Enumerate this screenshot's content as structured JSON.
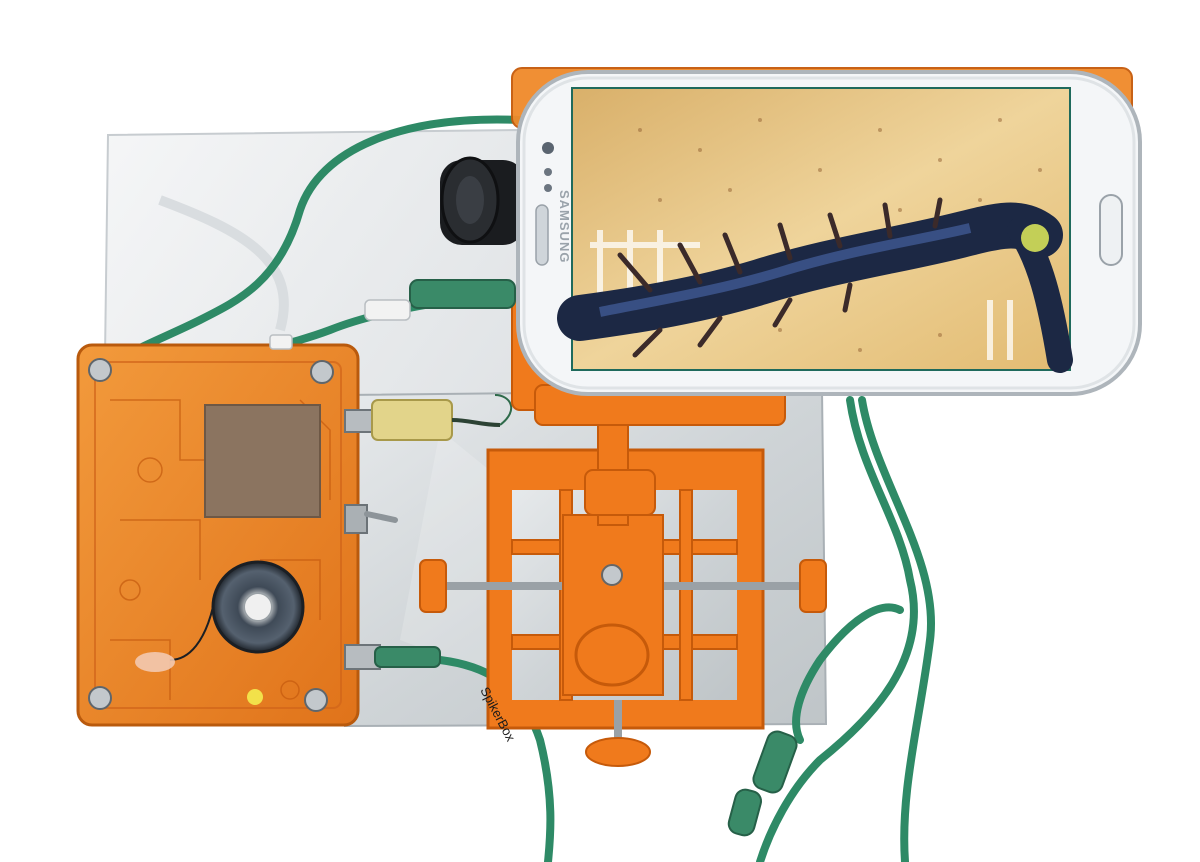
{
  "image": {
    "alt": "SpikerBox electrophysiology kit with a smartphone showing a magnified insect leg on a micromanipulator rig"
  },
  "phone": {
    "brand_text": "SAMSUNG"
  },
  "cable": {
    "label_text": "SpikerBox"
  },
  "colors": {
    "orange_plastic": "#f07a1c",
    "orange_dark": "#c85a0a",
    "cable_green": "#2e8a66",
    "board_base": "#e9eced",
    "phone_body": "#f4f6f8",
    "screen_bg": "#e9c98e",
    "insect_leg": "#22325a"
  }
}
